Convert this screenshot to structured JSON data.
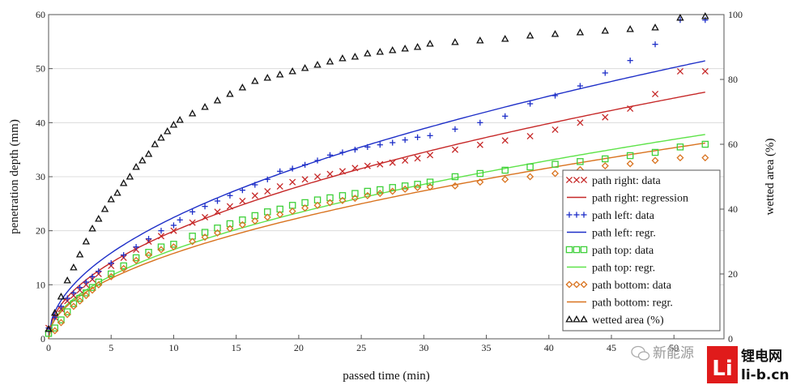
{
  "chart_data": {
    "type": "scatter",
    "xlabel": "passed time (min)",
    "ylabel": "penetration depth (mm)",
    "y2label": "wetted area (%)",
    "xlim": [
      0,
      54
    ],
    "ylim": [
      0,
      60
    ],
    "y2lim": [
      0,
      100
    ],
    "xticks": [
      "0",
      "5",
      "10",
      "15",
      "20",
      "25",
      "30",
      "35",
      "40",
      "45",
      "50"
    ],
    "yticks": [
      "0",
      "10",
      "20",
      "30",
      "40",
      "50",
      "60"
    ],
    "y2ticks": [
      "0",
      "20",
      "40",
      "60",
      "80",
      "100"
    ],
    "grid": "horizontal",
    "legend_position": "lower-right",
    "series": [
      {
        "name": "path right: data",
        "kind": "data",
        "marker": "x",
        "color": "#c62828",
        "x": [
          0,
          0.5,
          1,
          1.5,
          2,
          2.5,
          3,
          3.5,
          4,
          5,
          6,
          7,
          8,
          9,
          10,
          11.5,
          12.5,
          13.5,
          14.5,
          15.5,
          16.5,
          17.5,
          18.5,
          19.5,
          20.5,
          21.5,
          22.5,
          23.5,
          24.5,
          25.5,
          26.5,
          27.5,
          28.5,
          29.5,
          30.5,
          32.5,
          34.5,
          36.5,
          38.5,
          40.5,
          42.5,
          44.5,
          46.5,
          48.5,
          50.5,
          52.5
        ],
        "y": [
          2,
          4,
          5.5,
          7,
          8,
          9,
          10,
          11,
          12,
          13.5,
          15,
          16.5,
          18,
          19,
          20,
          21.5,
          22.5,
          23.5,
          24.5,
          25.5,
          26.5,
          27.3,
          28.2,
          29,
          29.5,
          30,
          30.5,
          31,
          31.6,
          32,
          32.3,
          32.6,
          33,
          33.4,
          34,
          35,
          35.9,
          36.7,
          37.5,
          38.7,
          40,
          41,
          42.6,
          45.3,
          49.5,
          49.5
        ]
      },
      {
        "name": "path right: regression",
        "kind": "fit",
        "color": "#c62828",
        "coef": 6.3,
        "exp": 0.5
      },
      {
        "name": "path left: data",
        "kind": "data",
        "marker": "+",
        "color": "#1e2fc8",
        "x": [
          0,
          0.5,
          1,
          1.5,
          2,
          2.5,
          3,
          3.5,
          4,
          5,
          6,
          7,
          8,
          9,
          10,
          10.5,
          11.5,
          12.5,
          13.5,
          14.5,
          15.5,
          16.5,
          17.5,
          18.5,
          19.5,
          20.5,
          21.5,
          22.5,
          23.5,
          24.5,
          25.5,
          26.5,
          27.5,
          28.5,
          29.5,
          30.5,
          32.5,
          34.5,
          36.5,
          38.5,
          40.5,
          42.5,
          44.5,
          46.5,
          48.5,
          50.5,
          52.5
        ],
        "y": [
          2,
          4,
          6,
          7.5,
          8.5,
          9.5,
          10.5,
          11.5,
          12.5,
          14,
          15.5,
          17,
          18.5,
          20,
          21,
          22,
          23.5,
          24.5,
          25.5,
          26.5,
          27.5,
          28.5,
          29.5,
          31,
          31.5,
          32.2,
          33,
          34,
          34.5,
          35,
          35.5,
          35.9,
          36.3,
          36.8,
          37.3,
          37.6,
          38.8,
          40,
          41.2,
          43.5,
          45,
          46.8,
          49.2,
          51.5,
          54.5,
          59,
          59
        ]
      },
      {
        "name": "path left: regr.",
        "kind": "fit",
        "color": "#1e2fc8",
        "coef": 7.1,
        "exp": 0.5
      },
      {
        "name": "path top: data",
        "kind": "data",
        "marker": "square",
        "color": "#3fd03a",
        "x": [
          0,
          0.5,
          1,
          1.5,
          2,
          2.5,
          3,
          3.5,
          4,
          5,
          6,
          7,
          8,
          9,
          10,
          11.5,
          12.5,
          13.5,
          14.5,
          15.5,
          16.5,
          17.5,
          18.5,
          19.5,
          20.5,
          21.5,
          22.5,
          23.5,
          24.5,
          25.5,
          26.5,
          27.5,
          28.5,
          29.5,
          30.5,
          32.5,
          34.5,
          36.5,
          38.5,
          40.5,
          42.5,
          44.5,
          46.5,
          48.5,
          50.5,
          52.5
        ],
        "y": [
          1,
          2,
          3.5,
          5,
          6.5,
          7.5,
          8.5,
          9.5,
          10.5,
          12,
          13.5,
          15,
          16,
          17,
          17.5,
          19,
          19.7,
          20.5,
          21.3,
          22,
          22.8,
          23.5,
          24,
          24.7,
          25.2,
          25.7,
          26.1,
          26.5,
          26.9,
          27.3,
          27.6,
          28,
          28.3,
          28.6,
          29,
          30,
          30.6,
          31.2,
          31.8,
          32.3,
          32.8,
          33.3,
          33.9,
          34.5,
          35.5,
          36
        ]
      },
      {
        "name": "path top: regr.",
        "kind": "fit",
        "color": "#5fe34a",
        "coef": 5.22,
        "exp": 0.5
      },
      {
        "name": "path bottom: data",
        "kind": "data",
        "marker": "diamond",
        "color": "#d9731f",
        "x": [
          0.5,
          1,
          1.5,
          2,
          2.5,
          3,
          3.5,
          4,
          5,
          6,
          7,
          8,
          9,
          10,
          11.5,
          12.5,
          13.5,
          14.5,
          15.5,
          16.5,
          17.5,
          18.5,
          19.5,
          20.5,
          21.5,
          22.5,
          23.5,
          24.5,
          25.5,
          26.5,
          27.5,
          28.5,
          29.5,
          30.5,
          32.5,
          34.5,
          36.5,
          38.5,
          40.5,
          42.5,
          44.5,
          46.5,
          48.5,
          50.5,
          52.5
        ],
        "y": [
          1.5,
          3,
          4.5,
          6,
          7,
          8,
          9,
          10,
          11.5,
          13,
          14.5,
          15.5,
          16.5,
          17,
          18,
          18.8,
          19.6,
          20.4,
          21.1,
          21.8,
          22.5,
          23,
          23.6,
          24.2,
          24.7,
          25.2,
          25.6,
          26,
          26.5,
          26.9,
          27.3,
          27.7,
          28,
          28.1,
          28.3,
          29,
          29.5,
          30,
          30.6,
          31.3,
          32,
          32.4,
          33,
          33.5,
          33.5
        ]
      },
      {
        "name": "path bottom: regr.",
        "kind": "fit",
        "color": "#d9731f",
        "coef": 5.0,
        "exp": 0.5
      },
      {
        "name": "wetted area (%)",
        "kind": "data",
        "axis": "right",
        "marker": "triangle",
        "color": "#111111",
        "x": [
          0,
          0.5,
          1,
          1.5,
          2,
          2.5,
          3,
          3.5,
          4,
          4.5,
          5,
          5.5,
          6,
          6.5,
          7,
          7.5,
          8,
          8.5,
          9,
          9.5,
          10,
          10.5,
          11.5,
          12.5,
          13.5,
          14.5,
          15.5,
          16.5,
          17.5,
          18.5,
          19.5,
          20.5,
          21.5,
          22.5,
          23.5,
          24.5,
          25.5,
          26.5,
          27.5,
          28.5,
          29.5,
          30.5,
          32.5,
          34.5,
          36.5,
          38.5,
          40.5,
          42.5,
          44.5,
          46.5,
          48.5,
          50.5,
          52.5
        ],
        "y": [
          3,
          8,
          13,
          18,
          22,
          26,
          30,
          34,
          37,
          40,
          43,
          45,
          48,
          50,
          53,
          55,
          57,
          60,
          62,
          64,
          66,
          67.5,
          69.5,
          71.5,
          73.5,
          75.5,
          77.5,
          79.5,
          80.5,
          81.5,
          82.5,
          83.5,
          84.5,
          85.5,
          86.5,
          87,
          88,
          88.5,
          89,
          89.5,
          90,
          91,
          91.5,
          92,
          92.5,
          93.5,
          94,
          94.5,
          95,
          95.5,
          96,
          99,
          99.5
        ]
      }
    ]
  },
  "watermark": {
    "wechat_text": "新能源",
    "site_cn": "锂电网",
    "site_url": "li-b.cn",
    "logo_letter": "Li"
  }
}
